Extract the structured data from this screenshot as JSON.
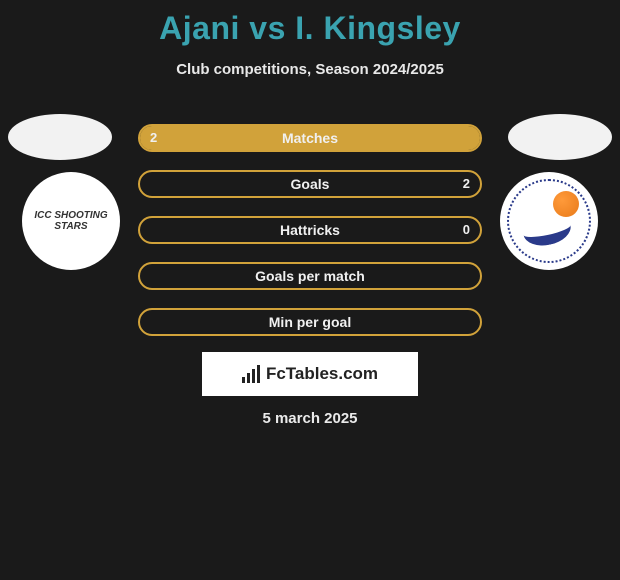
{
  "title": "Ajani vs I. Kingsley",
  "subtitle": "Club competitions, Season 2024/2025",
  "club_left_text": "ICC SHOOTING STARS",
  "colors": {
    "accent": "#3aa3b0",
    "bar_border": "#d1a23a",
    "bar_fill": "#d1a23a",
    "bg": "#1a1a1a",
    "text_light": "#f0f0f0",
    "club_right_border": "#2a3a8a",
    "club_right_ball": "#e87a1a"
  },
  "bars": [
    {
      "label": "Matches",
      "left_val": "2",
      "right_val": "",
      "left_fill_pct": 100,
      "right_fill_pct": 0
    },
    {
      "label": "Goals",
      "left_val": "",
      "right_val": "2",
      "left_fill_pct": 0,
      "right_fill_pct": 0
    },
    {
      "label": "Hattricks",
      "left_val": "",
      "right_val": "0",
      "left_fill_pct": 0,
      "right_fill_pct": 0
    },
    {
      "label": "Goals per match",
      "left_val": "",
      "right_val": "",
      "left_fill_pct": 0,
      "right_fill_pct": 0
    },
    {
      "label": "Min per goal",
      "left_val": "",
      "right_val": "",
      "left_fill_pct": 0,
      "right_fill_pct": 0
    }
  ],
  "logo_text": "FcTables.com",
  "date": "5 march 2025"
}
